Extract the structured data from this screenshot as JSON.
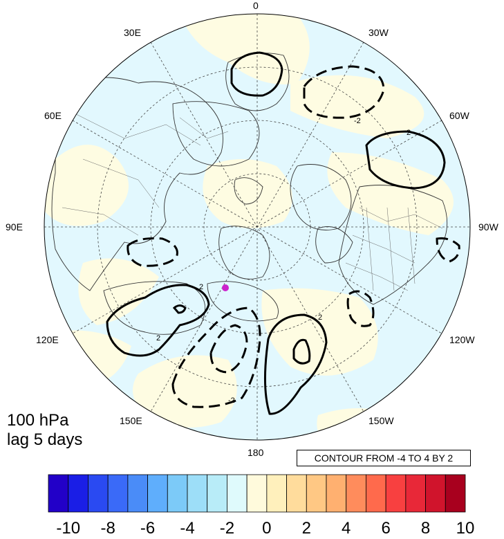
{
  "title": {
    "level": "100 hPa",
    "lag": "lag 5 days"
  },
  "contour_note": "CONTOUR FROM -4 TO 4 BY 2",
  "longitude_labels": {
    "top": "0",
    "bottom": "180",
    "left": "90E",
    "right": "90W",
    "upper_left_1": "30E",
    "upper_left_2": "60E",
    "upper_right_1": "30W",
    "upper_right_2": "60W",
    "lower_left_1": "120E",
    "lower_left_2": "150E",
    "lower_right_1": "120W",
    "lower_right_2": "150W"
  },
  "contour_labels": [
    "2",
    "-2",
    "2",
    "-2",
    "2",
    "2"
  ],
  "colorbar": {
    "ticks": [
      "-10",
      "-8",
      "-6",
      "-4",
      "-2",
      "0",
      "2",
      "4",
      "6",
      "8",
      "10"
    ],
    "colors": [
      "#2200c8",
      "#1a1ee6",
      "#2a4af2",
      "#3a6af8",
      "#4a8cf8",
      "#5faefc",
      "#7ccaf8",
      "#9ddef8",
      "#b8ecf8",
      "#dffafc",
      "#fffadc",
      "#fff0bc",
      "#ffdc9c",
      "#ffc884",
      "#ffb070",
      "#ff8c5c",
      "#ff6a4c",
      "#f84040",
      "#e82838",
      "#d0142c",
      "#a8001e"
    ]
  },
  "colors": {
    "ocean_positive": "#fefce2",
    "ocean_negative": "#e2f8fe",
    "marker": "#cc22cc"
  }
}
